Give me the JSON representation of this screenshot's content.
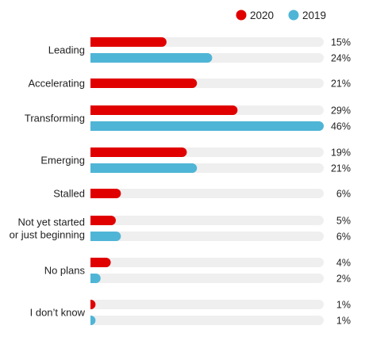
{
  "chart_data": {
    "type": "bar",
    "orientation": "horizontal",
    "value_suffix": "%",
    "xlim": [
      0,
      46
    ],
    "grid": false,
    "legend_position": "top-right",
    "colors": {
      "2020": "#e00000",
      "2019": "#4fb5d6",
      "track": "#efefef"
    },
    "series": [
      {
        "name": "2020",
        "values": [
          15,
          21,
          29,
          19,
          6,
          5,
          4,
          1
        ]
      },
      {
        "name": "2019",
        "values": [
          24,
          null,
          46,
          21,
          null,
          6,
          2,
          1
        ]
      }
    ],
    "categories": [
      {
        "label_lines": [
          "Leading"
        ]
      },
      {
        "label_lines": [
          "Accelerating"
        ]
      },
      {
        "label_lines": [
          "Transforming"
        ]
      },
      {
        "label_lines": [
          "Emerging"
        ]
      },
      {
        "label_lines": [
          "Stalled"
        ]
      },
      {
        "label_lines": [
          "Not yet started",
          "or just beginning"
        ]
      },
      {
        "label_lines": [
          "No plans"
        ]
      },
      {
        "label_lines": [
          "I don’t know"
        ]
      }
    ]
  }
}
